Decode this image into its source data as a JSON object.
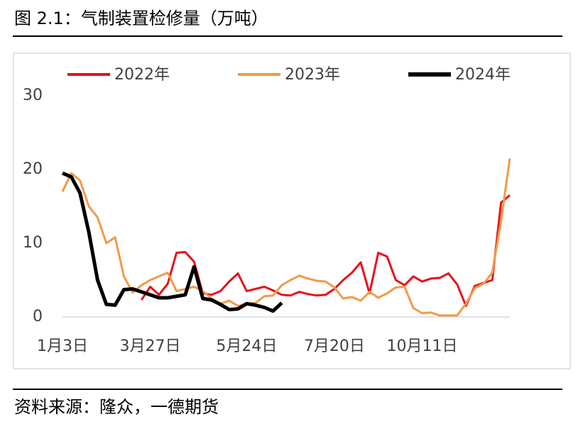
{
  "chart_data": {
    "type": "line",
    "title": "图 2.1：气制装置检修量（万吨）",
    "source": "资料来源：隆众，一德期货",
    "categories": [
      "1月3日",
      null,
      null,
      null,
      null,
      null,
      null,
      null,
      null,
      null,
      "3月27日",
      null,
      null,
      null,
      null,
      null,
      null,
      null,
      null,
      null,
      null,
      "5月24日",
      null,
      null,
      null,
      null,
      null,
      null,
      null,
      null,
      null,
      "7月20日",
      null,
      null,
      null,
      null,
      null,
      null,
      null,
      null,
      null,
      "10月11日",
      null,
      null,
      null,
      null,
      null,
      null,
      null,
      null,
      null,
      null
    ],
    "series": [
      {
        "name": "2022年",
        "color": "#e8101a",
        "width": 3,
        "values": [
          null,
          null,
          null,
          null,
          null,
          null,
          null,
          null,
          null,
          2.3,
          4.1,
          3.0,
          4.5,
          8.7,
          8.8,
          7.5,
          3.2,
          3.0,
          3.5,
          4.8,
          5.9,
          3.5,
          3.8,
          4.1,
          3.6,
          3.0,
          2.9,
          3.4,
          3.1,
          2.9,
          3.0,
          3.8,
          5.0,
          6.0,
          7.4,
          3.2,
          8.7,
          8.2,
          5.0,
          4.3,
          5.5,
          4.8,
          5.2,
          5.3,
          5.9,
          4.4,
          1.5,
          4.2,
          4.6,
          5.0,
          15.5,
          16.5
        ]
      },
      {
        "name": "2023年",
        "color": "#f19a49",
        "width": 3,
        "values": [
          17.0,
          19.5,
          18.5,
          15.0,
          13.5,
          10.0,
          10.8,
          5.5,
          3.3,
          4.3,
          5.0,
          5.5,
          6.0,
          3.5,
          3.8,
          4.1,
          3.5,
          2.5,
          1.8,
          2.2,
          1.5,
          1.8,
          1.9,
          2.8,
          2.9,
          4.3,
          5.0,
          5.6,
          5.2,
          4.9,
          4.8,
          4.0,
          2.5,
          2.7,
          2.2,
          3.4,
          2.6,
          3.2,
          4.0,
          4.1,
          1.2,
          0.5,
          0.6,
          0.2,
          0.2,
          0.2,
          1.8,
          3.9,
          4.5,
          6.0,
          13.0,
          21.5
        ]
      },
      {
        "name": "2024年",
        "color": "#000000",
        "width": 5,
        "values": [
          19.5,
          19.0,
          16.8,
          11.5,
          5.0,
          1.7,
          1.6,
          3.7,
          3.8,
          3.4,
          3.0,
          2.6,
          2.6,
          2.8,
          3.0,
          6.8,
          2.5,
          2.3,
          1.7,
          1.0,
          1.1,
          1.8,
          1.6,
          1.3,
          0.8,
          1.9,
          null,
          null,
          null,
          null,
          null,
          null,
          null,
          null,
          null,
          null,
          null,
          null,
          null,
          null,
          null,
          null,
          null,
          null,
          null,
          null,
          null,
          null,
          null,
          null,
          null,
          null
        ]
      }
    ],
    "ylim": [
      0,
      30
    ],
    "yticks": [
      0,
      10,
      20,
      30
    ],
    "grid": false,
    "legend": "top"
  }
}
